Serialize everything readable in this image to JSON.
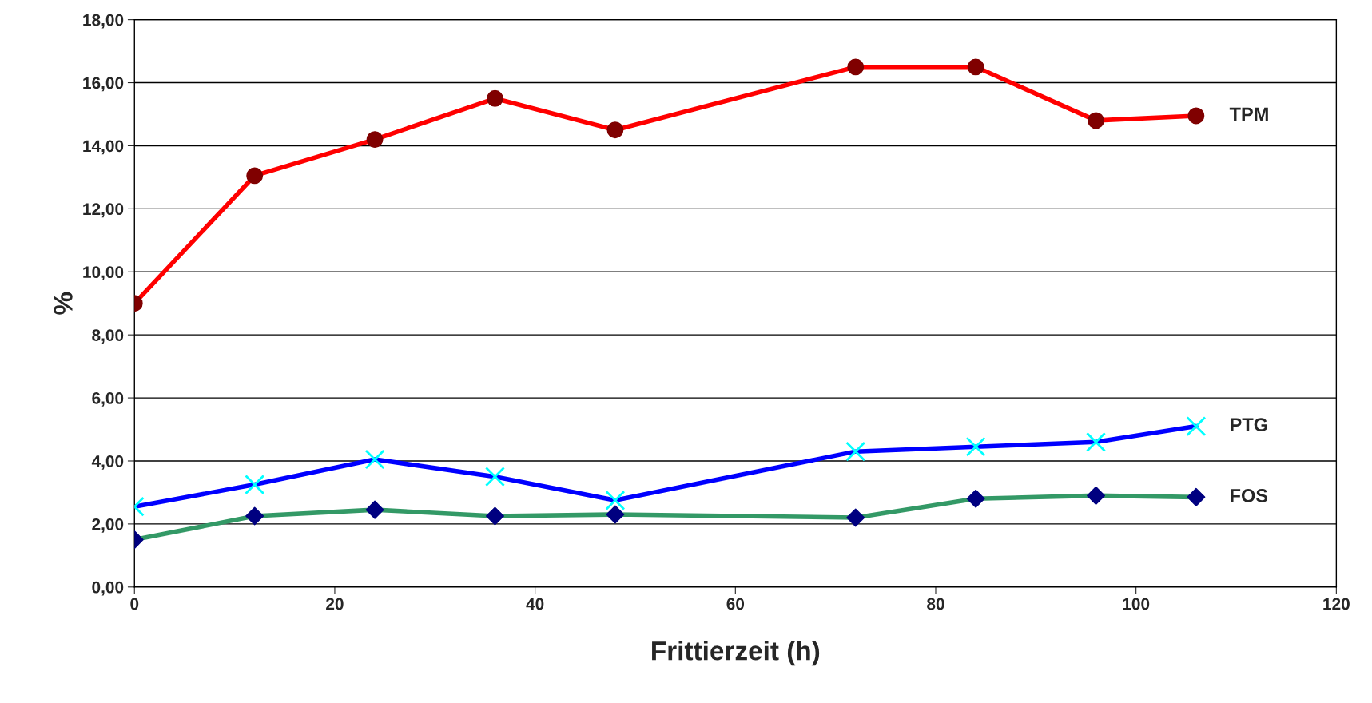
{
  "chart_data": {
    "type": "line",
    "xlabel": "Frittierzeit (h)",
    "ylabel": "%",
    "xlim": [
      0,
      120
    ],
    "xticks": [
      0,
      20,
      40,
      60,
      80,
      100,
      120
    ],
    "ylim": [
      0,
      18
    ],
    "yticks": [
      {
        "value": 0,
        "label": "0,00"
      },
      {
        "value": 2,
        "label": "2,00"
      },
      {
        "value": 4,
        "label": "4,00"
      },
      {
        "value": 6,
        "label": "6,00"
      },
      {
        "value": 8,
        "label": "8,00"
      },
      {
        "value": 10,
        "label": "10,00"
      },
      {
        "value": 12,
        "label": "12,00"
      },
      {
        "value": 14,
        "label": "14,00"
      },
      {
        "value": 16,
        "label": "16,00"
      },
      {
        "value": 18,
        "label": "18,00"
      }
    ],
    "grid": "y",
    "legend": false,
    "x": [
      0,
      12,
      24,
      36,
      48,
      72,
      84,
      96,
      106
    ],
    "series": [
      {
        "name": "TPM",
        "color": "#ff0000",
        "colors": [
          "#800000",
          "#800000",
          "#800000",
          "#800000",
          "#800000",
          "#800000",
          "#800000",
          "#800000",
          "#800000"
        ],
        "marker": "circle",
        "values": [
          9.0,
          13.05,
          14.2,
          15.5,
          14.5,
          16.5,
          16.5,
          14.8,
          14.95
        ]
      },
      {
        "name": "PTG",
        "color": "#0000ff",
        "colors": [
          "#00ffff",
          "#00ffff",
          "#00ffff",
          "#00ffff",
          "#00ffff",
          "#00ffff",
          "#00ffff",
          "#00ffff",
          "#00ffff"
        ],
        "marker": "cross",
        "values": [
          2.55,
          3.25,
          4.05,
          3.5,
          2.75,
          4.3,
          4.45,
          4.6,
          5.1
        ]
      },
      {
        "name": "FOS",
        "color": "#339966",
        "colors": [
          "#000080",
          "#000080",
          "#000080",
          "#000080",
          "#000080",
          "#000080",
          "#000080",
          "#000080",
          "#000080"
        ],
        "marker": "diamond",
        "values": [
          1.5,
          2.25,
          2.45,
          2.25,
          2.3,
          2.2,
          2.8,
          2.9,
          2.85
        ]
      }
    ]
  }
}
